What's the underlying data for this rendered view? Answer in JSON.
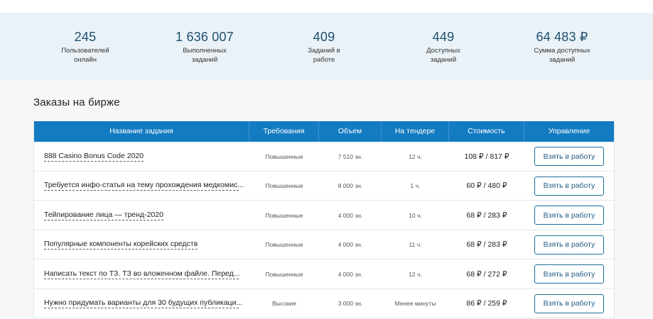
{
  "stats": [
    {
      "value": "245",
      "label_line1": "Пользователей",
      "label_line2": "онлайн"
    },
    {
      "value": "1 636 007",
      "label_line1": "Выполненных",
      "label_line2": "заданий"
    },
    {
      "value": "409",
      "label_line1": "Заданий в",
      "label_line2": "работе"
    },
    {
      "value": "449",
      "label_line1": "Доступных",
      "label_line2": "заданий"
    },
    {
      "value": "64 483 ₽",
      "label_line1": "Сумма доступных",
      "label_line2": "заданий"
    }
  ],
  "section_title": "Заказы на бирже",
  "table": {
    "headers": [
      "Название задания",
      "Требования",
      "Объем",
      "На тендере",
      "Стоимость",
      "Управление"
    ],
    "rows": [
      {
        "name": "888 Casino Bonus Code 2020",
        "req": "Повышенные",
        "volume": "7 510 зн.",
        "tender": "12 ч.",
        "price": "108 ₽ / 817 ₽",
        "action": "Взять в работу"
      },
      {
        "name": "Требуется инфо-статья на тему прохождения медкомис...",
        "req": "Повышенные",
        "volume": "8 000 зн.",
        "tender": "1 ч.",
        "price": "60 ₽ / 480 ₽",
        "action": "Взять в работу"
      },
      {
        "name": "Тейпирование лица — тренд-2020",
        "req": "Повышенные",
        "volume": "4 000 зн.",
        "tender": "10 ч.",
        "price": "68 ₽ / 283 ₽",
        "action": "Взять в работу"
      },
      {
        "name": "Популярные компоненты корейских средств",
        "req": "Повышенные",
        "volume": "4 000 зн.",
        "tender": "11 ч.",
        "price": "68 ₽ / 283 ₽",
        "action": "Взять в работу"
      },
      {
        "name": "Написать текст по ТЗ. ТЗ во вложенном файле. Перед...",
        "req": "Повышенные",
        "volume": "4 000 зн.",
        "tender": "12 ч.",
        "price": "68 ₽ / 272 ₽",
        "action": "Взять в работу"
      },
      {
        "name": "Нужно придумать варианты для 30 будущих публикаци...",
        "req": "Высокие",
        "volume": "3 000 зн.",
        "tender": "Менее минуты",
        "price": "86 ₽ / 259 ₽",
        "action": "Взять в работу"
      }
    ]
  },
  "colors": {
    "header_bg": "#137bc1",
    "stats_bg": "#eaf2f8",
    "stat_number": "#1d4f6e",
    "button_border": "#1e6e9c"
  }
}
